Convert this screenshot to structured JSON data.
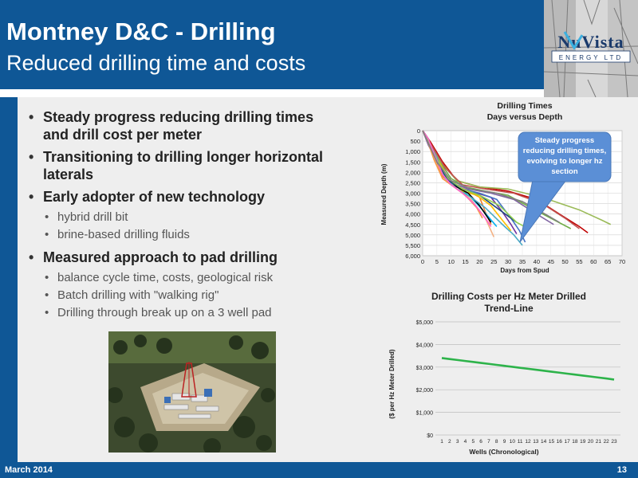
{
  "slide": {
    "title": "Montney D&C - Drilling",
    "subtitle": "Reduced drilling time and costs"
  },
  "logo": {
    "name": "NuVista",
    "tagline": "ENERGY LTD"
  },
  "bullets": [
    {
      "text": "Steady progress reducing drilling times and drill cost per meter",
      "sub": []
    },
    {
      "text": "Transitioning to drilling longer horizontal laterals",
      "sub": []
    },
    {
      "text": "Early adopter of new technology",
      "sub": [
        "hybrid drill bit",
        "brine-based drilling fluids"
      ]
    },
    {
      "text": "Measured approach to pad drilling",
      "sub": [
        "balance cycle time, costs, geological risk",
        "Batch drilling with \"walking rig\"",
        "Drilling through break up on a 3 well pad"
      ]
    }
  ],
  "footer": {
    "date": "March 2014",
    "page": "13"
  },
  "colors": {
    "brand_blue": "#0f5796",
    "trend_green": "#2db34a",
    "callout_blue": "#5b8fd6"
  },
  "chart_data": [
    {
      "type": "line",
      "title": "Drilling Times",
      "subtitle": "Days versus Depth",
      "xlabel": "Days from Spud",
      "ylabel": "Measured Depth (m)",
      "xlim": [
        0,
        70
      ],
      "ylim": [
        0,
        6000
      ],
      "y_inverted": true,
      "grid": true,
      "xticks": [
        "0",
        "5",
        "10",
        "15",
        "20",
        "25",
        "30",
        "35",
        "40",
        "45",
        "50",
        "55",
        "60",
        "65",
        "70"
      ],
      "yticks": [
        "0",
        "500",
        "1,000",
        "1,500",
        "2,000",
        "2,500",
        "3,000",
        "3,500",
        "4,000",
        "4,500",
        "5,000",
        "5,500",
        "6,000"
      ],
      "annotation": "Steady progress reducing drilling times, evolving to longer hz section",
      "series": [
        {
          "color": "#7030a0",
          "x": [
            0,
            2,
            5,
            8,
            12,
            18,
            24,
            28,
            31,
            33
          ],
          "y": [
            0,
            600,
            1300,
            2300,
            2700,
            2950,
            3200,
            3900,
            4500,
            4950
          ]
        },
        {
          "color": "#4472c4",
          "x": [
            0,
            2,
            5,
            9,
            14,
            20,
            26,
            31,
            34,
            36
          ],
          "y": [
            0,
            600,
            1400,
            2400,
            2800,
            3000,
            3300,
            4200,
            4800,
            5350
          ]
        },
        {
          "color": "#ed7d31",
          "x": [
            0,
            2,
            4,
            7,
            11,
            16,
            20,
            22,
            24
          ],
          "y": [
            0,
            500,
            1200,
            2200,
            2600,
            2900,
            3200,
            3900,
            4500
          ]
        },
        {
          "color": "#70ad47",
          "x": [
            0,
            2,
            6,
            10,
            15,
            22,
            30,
            38,
            45,
            52
          ],
          "y": [
            0,
            500,
            1500,
            2300,
            2700,
            2900,
            3100,
            3700,
            4200,
            4700
          ]
        },
        {
          "color": "#c00000",
          "x": [
            0,
            3,
            7,
            12,
            20,
            30,
            40,
            48,
            55,
            58
          ],
          "y": [
            0,
            600,
            1500,
            2400,
            2700,
            2900,
            3300,
            4000,
            4600,
            4900
          ]
        },
        {
          "color": "#00b0f0",
          "x": [
            0,
            2,
            5,
            9,
            13,
            17,
            21,
            26
          ],
          "y": [
            0,
            500,
            1400,
            2300,
            2800,
            3200,
            3800,
            4600
          ]
        },
        {
          "color": "#ffc000",
          "x": [
            0,
            2,
            5,
            9,
            14,
            19,
            24,
            28,
            31
          ],
          "y": [
            0,
            500,
            1300,
            2300,
            2900,
            3100,
            3600,
            4300,
            4800
          ]
        },
        {
          "color": "#9bbb59",
          "x": [
            0,
            3,
            7,
            12,
            20,
            30,
            42,
            55,
            63,
            66
          ],
          "y": [
            0,
            700,
            1600,
            2400,
            2700,
            2800,
            3200,
            3800,
            4300,
            4500
          ]
        },
        {
          "color": "#000000",
          "x": [
            0,
            2,
            4,
            8,
            12,
            16,
            20,
            24
          ],
          "y": [
            0,
            400,
            1200,
            2200,
            2700,
            3000,
            3600,
            4400
          ]
        },
        {
          "color": "#f4b183",
          "x": [
            0,
            2,
            4,
            7,
            10,
            13,
            17,
            22,
            25
          ],
          "y": [
            0,
            600,
            1300,
            2300,
            2600,
            2900,
            3300,
            4200,
            5100
          ]
        },
        {
          "color": "#8064a2",
          "x": [
            0,
            2,
            6,
            10,
            16,
            24,
            32,
            40,
            46
          ],
          "y": [
            0,
            700,
            1700,
            2500,
            2800,
            3000,
            3300,
            4000,
            4500
          ]
        },
        {
          "color": "#4bacc6",
          "x": [
            0,
            2,
            5,
            8,
            12,
            17,
            22,
            28,
            32,
            35
          ],
          "y": [
            0,
            500,
            1300,
            2300,
            2800,
            3200,
            3700,
            4500,
            5000,
            5500
          ]
        },
        {
          "color": "#c0504d",
          "x": [
            0,
            4,
            8,
            14,
            22,
            32,
            42,
            50,
            55
          ],
          "y": [
            0,
            900,
            1800,
            2600,
            2800,
            3000,
            3500,
            4200,
            4700
          ]
        },
        {
          "color": "#1f497d",
          "x": [
            0,
            2,
            5,
            9,
            14,
            20,
            27,
            33
          ],
          "y": [
            0,
            500,
            1500,
            2400,
            2800,
            3100,
            3800,
            4400
          ]
        },
        {
          "color": "#f79646",
          "x": [
            0,
            2,
            4,
            7,
            11,
            15,
            19,
            21
          ],
          "y": [
            0,
            600,
            1400,
            2300,
            2700,
            3100,
            3700,
            4200
          ]
        },
        {
          "color": "#92d050",
          "x": [
            0,
            2,
            5,
            9,
            14,
            20,
            27,
            33,
            37
          ],
          "y": [
            0,
            500,
            1400,
            2300,
            2800,
            3100,
            3600,
            4400,
            4700
          ]
        },
        {
          "color": "#ff66cc",
          "x": [
            0,
            2,
            4,
            7,
            10,
            14,
            18,
            22,
            24
          ],
          "y": [
            0,
            400,
            1100,
            2100,
            2600,
            3000,
            3500,
            4200,
            4600
          ]
        },
        {
          "color": "#808080",
          "x": [
            0,
            2,
            5,
            10,
            17,
            26,
            35,
            43,
            48
          ],
          "y": [
            0,
            600,
            1500,
            2400,
            2800,
            3000,
            3400,
            4000,
            4400
          ]
        }
      ]
    },
    {
      "type": "line",
      "title": "Drilling Costs per Hz Meter Drilled",
      "subtitle": "Trend-Line",
      "xlabel": "Wells (Chronological)",
      "ylabel": "($ per Hz Meter Drilled)",
      "ylim": [
        0,
        5000
      ],
      "grid": true,
      "yticks": [
        "$0",
        "$1,000",
        "$2,000",
        "$3,000",
        "$4,000",
        "$5,000"
      ],
      "categories": [
        "1",
        "2",
        "3",
        "4",
        "5",
        "6",
        "7",
        "8",
        "9",
        "10",
        "11",
        "12",
        "13",
        "14",
        "15",
        "16",
        "17",
        "18",
        "19",
        "20",
        "21",
        "22",
        "23"
      ],
      "series": [
        {
          "color": "#2db34a",
          "values": [
            3400,
            3357,
            3314,
            3271,
            3228,
            3185,
            3142,
            3099,
            3056,
            3013,
            2970,
            2927,
            2884,
            2841,
            2798,
            2755,
            2712,
            2669,
            2626,
            2583,
            2540,
            2497,
            2450
          ]
        }
      ]
    }
  ]
}
